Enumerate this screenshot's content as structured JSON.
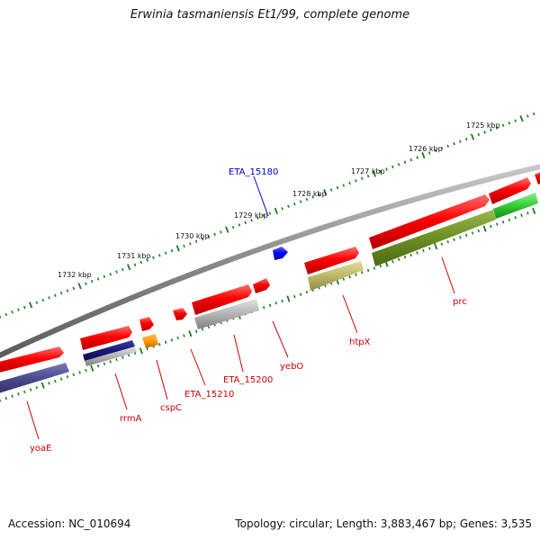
{
  "title": "Erwinia tasmaniensis Et1/99, complete genome",
  "footer": {
    "accession": "Accession: NC_010694",
    "stats": "Topology: circular; Length: 3,883,467 bp; Genes: 3,535"
  },
  "scale_labels": [
    "1725 kbp",
    "1726 kbp",
    "1727 kbp",
    "1728 kbp",
    "1729 kbp",
    "1730 kbp",
    "1731 kbp",
    "1732 kbp"
  ],
  "gene_labels": {
    "eta_15180": "ETA_15180",
    "yoaE": "yoaE",
    "rrmA": "rrmA",
    "cspC": "cspC",
    "eta_15210": "ETA_15210",
    "eta_15200": "ETA_15200",
    "yebO": "yebO",
    "htpX": "htpX",
    "prc": "prc"
  },
  "colors": {
    "backbone": "#808080",
    "cds_red": "#ff0000",
    "label_red": "#cc0000",
    "label_blue": "#0000cc",
    "tick_green": "#1e7a1e",
    "navy": "#1a1a7a",
    "slate": "#4a4a8e",
    "orange": "#ff9900",
    "gray": "#b3b3b3",
    "olive": "#6b8e23",
    "khaki": "#bdb76b",
    "green": "#33cc33",
    "blue": "#0000ff"
  }
}
